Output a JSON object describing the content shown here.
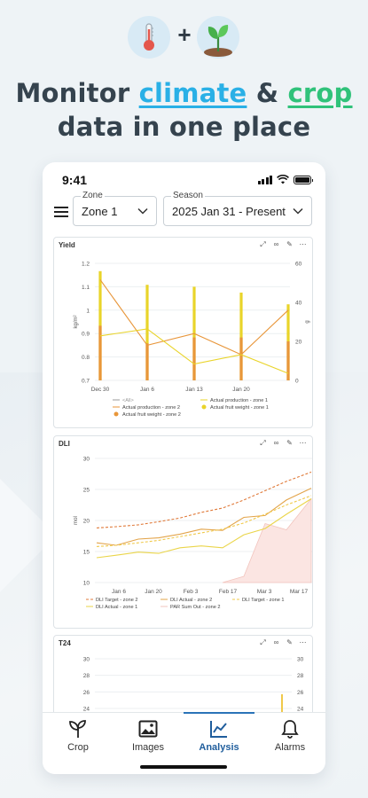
{
  "hero": {
    "title_pre": "Monitor ",
    "title_word1": "climate",
    "title_mid": " & ",
    "title_word2": "crop",
    "title_line2": "data in one place",
    "plus": "+"
  },
  "colors": {
    "accent_blue": "#2ab0e6",
    "accent_green": "#30c27a",
    "nav_active": "#1f5d9c",
    "line_orange": "#e8963a",
    "line_yellow": "#e9d42a",
    "line_gold": "#f0b847"
  },
  "status_bar": {
    "time": "9:41"
  },
  "filters": {
    "zone": {
      "label": "Zone",
      "value": "Zone 1"
    },
    "season": {
      "label": "Season",
      "value": "2025 Jan 31 - Present"
    }
  },
  "cards": {
    "yield": {
      "title": "Yield",
      "ylabel_left": "kg/m²",
      "ylabel_right": "g",
      "legend_all": "<All>",
      "legend": [
        "Actual production - zone 2",
        "Actual production - zone 1",
        "Actual fruit weight - zone 2",
        "Actual fruit weight - zone 1"
      ]
    },
    "dli": {
      "title": "DLI",
      "ylabel": "mol",
      "legend": [
        "DLI Target - zone 2",
        "DLI Actual - zone 2",
        "DLI Target - zone 1",
        "DLI Actual - zone 1",
        "PAR Sum Out - zone 2"
      ]
    },
    "t24": {
      "title": "T24"
    }
  },
  "chart_data": [
    {
      "type": "bar",
      "title": "Yield",
      "x_ticks": [
        "Dec 30",
        "Jan 6",
        "Jan 13",
        "Jan 20"
      ],
      "ylabel": "kg/m²",
      "ylim": [
        0.7,
        1.2
      ],
      "y_ticks": [
        "0.7",
        "0.8",
        "0.9",
        "1",
        "1.1",
        "1.2"
      ],
      "y2label": "g",
      "y2lim": [
        0,
        60
      ],
      "y2_ticks": [
        "0",
        "20",
        "40",
        "60"
      ],
      "series": [
        {
          "name": "Actual production - zone 2",
          "kind": "line",
          "axis": "left",
          "values": [
            1.13,
            0.85,
            0.9,
            0.81,
            1.0
          ]
        },
        {
          "name": "Actual production - zone 1",
          "kind": "line",
          "axis": "left",
          "values": [
            0.89,
            0.92,
            0.77,
            0.81,
            0.73
          ]
        },
        {
          "name": "Actual fruit weight - zone 2",
          "kind": "bar",
          "axis": "right",
          "values": [
            28,
            19,
            22,
            22,
            20
          ]
        },
        {
          "name": "Actual fruit weight - zone 1",
          "kind": "bar",
          "axis": "right",
          "values": [
            56,
            49,
            48,
            45,
            39
          ]
        }
      ],
      "x_index": [
        0,
        1,
        2,
        3,
        4
      ]
    },
    {
      "type": "line",
      "title": "DLI",
      "x_ticks": [
        "Jan 6",
        "Jan 20",
        "Feb 3",
        "Feb 17",
        "Mar 3",
        "Mar 17"
      ],
      "ylabel": "mol",
      "ylim": [
        10,
        30
      ],
      "y_ticks": [
        "10",
        "15",
        "20",
        "25",
        "30"
      ],
      "series": [
        {
          "name": "DLI Target - zone 2",
          "style": "dashed",
          "values": [
            18.8,
            19.0,
            19.3,
            19.8,
            20.4,
            21.3,
            22.0,
            23.3,
            24.8,
            26.3,
            27.8
          ]
        },
        {
          "name": "DLI Actual - zone 2",
          "style": "solid",
          "values": [
            16.4,
            16.0,
            17.0,
            17.2,
            17.8,
            18.6,
            18.4,
            20.5,
            20.8,
            23.3,
            25.2
          ]
        },
        {
          "name": "DLI Target - zone 1",
          "style": "dashed",
          "values": [
            15.8,
            16.0,
            16.4,
            16.8,
            17.4,
            18.0,
            18.6,
            19.6,
            21.0,
            22.5,
            24.0
          ]
        },
        {
          "name": "DLI Actual - zone 1",
          "style": "solid",
          "values": [
            14.0,
            14.4,
            14.9,
            14.7,
            15.6,
            15.9,
            15.6,
            17.7,
            18.7,
            21.0,
            23.5
          ]
        },
        {
          "name": "PAR Sum Out - zone 2",
          "style": "area",
          "values": [
            null,
            null,
            null,
            null,
            null,
            null,
            10.0,
            11.0,
            19.5,
            18.5,
            23.5
          ]
        }
      ],
      "x_index": [
        0,
        1,
        2,
        3,
        4,
        5,
        6,
        7,
        8,
        9,
        10
      ]
    },
    {
      "type": "line",
      "title": "T24",
      "ylim": [
        24,
        30
      ],
      "y_ticks": [
        "24",
        "26",
        "28",
        "30"
      ],
      "series": []
    }
  ],
  "nav": {
    "items": [
      {
        "label": "Crop",
        "icon": "sprout-icon"
      },
      {
        "label": "Images",
        "icon": "image-icon"
      },
      {
        "label": "Analysis",
        "icon": "chart-line-icon"
      },
      {
        "label": "Alarms",
        "icon": "bell-icon"
      }
    ],
    "active": "Analysis"
  }
}
